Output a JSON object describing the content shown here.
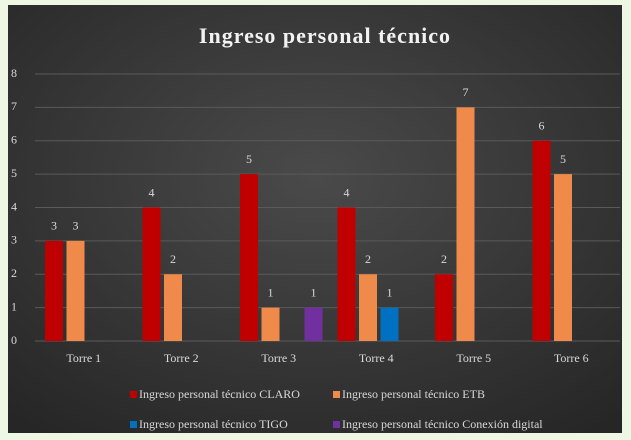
{
  "chart_data": {
    "type": "bar",
    "title": "Ingreso personal técnico",
    "categories": [
      "Torre 1",
      "Torre 2",
      "Torre 3",
      "Torre 4",
      "Torre 5",
      "Torre 6"
    ],
    "series": [
      {
        "name": "Ingreso personal técnico CLARO",
        "color": "#c00000",
        "values": [
          3,
          4,
          5,
          4,
          2,
          6
        ]
      },
      {
        "name": "Ingreso personal técnico ETB",
        "color": "#f08a4b",
        "values": [
          3,
          2,
          1,
          2,
          7,
          5
        ]
      },
      {
        "name": "Ingreso personal técnico TIGO",
        "color": "#0070c0",
        "values": [
          null,
          null,
          null,
          1,
          null,
          null
        ]
      },
      {
        "name": "Ingreso personal técnico Conexión digital",
        "color": "#7030a0",
        "values": [
          null,
          null,
          1,
          null,
          null,
          null
        ]
      }
    ],
    "ylim": [
      0,
      8
    ],
    "yticks": [
      0,
      1,
      2,
      3,
      4,
      5,
      6,
      7,
      8
    ],
    "grid": true,
    "legend": "bottom"
  }
}
